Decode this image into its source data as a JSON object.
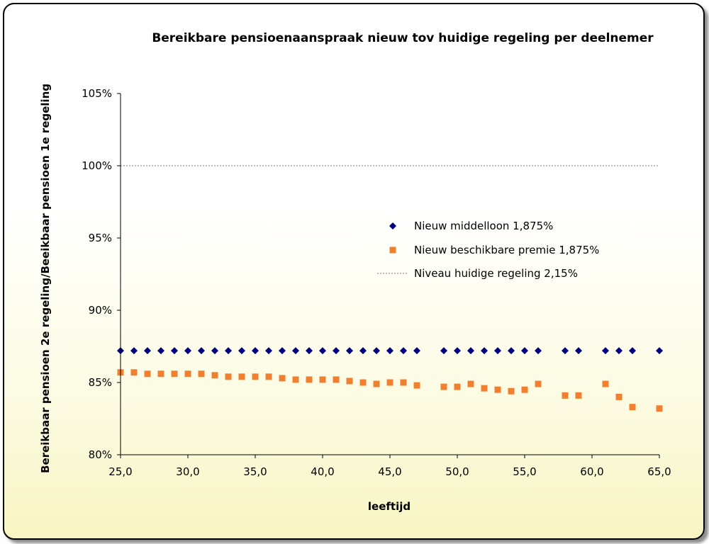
{
  "chart_data": {
    "type": "scatter",
    "title": "Bereikbare pensioenaanspraak nieuw tov huidige regeling per deelnemer",
    "xlabel": "leeftijd",
    "ylabel": "Bereikbaar pensioen 2e regeling/Beeikbaar pensioen 1e regeling",
    "xlim": [
      25,
      65
    ],
    "ylim": [
      0.8,
      1.05
    ],
    "x_ticks": [
      25,
      30,
      35,
      40,
      45,
      50,
      55,
      60,
      65
    ],
    "x_tick_labels": [
      "25,0",
      "30,0",
      "35,0",
      "40,0",
      "45,0",
      "50,0",
      "55,0",
      "60,0",
      "65,0"
    ],
    "y_ticks": [
      0.8,
      0.85,
      0.9,
      0.95,
      1.0,
      1.05
    ],
    "y_tick_labels": [
      "80%",
      "85%",
      "90%",
      "95%",
      "100%",
      "105%"
    ],
    "grid": false,
    "legend_position": "center-right",
    "series": [
      {
        "name": "Nieuw middelloon 1,875%",
        "marker": "diamond",
        "color": "#000080",
        "x": [
          25,
          26,
          27,
          28,
          29,
          30,
          31,
          32,
          33,
          34,
          35,
          36,
          37,
          38,
          39,
          40,
          41,
          42,
          43,
          44,
          45,
          46,
          47,
          49,
          50,
          51,
          52,
          53,
          54,
          55,
          56,
          58,
          59,
          61,
          62,
          63,
          65
        ],
        "y": [
          0.872,
          0.872,
          0.872,
          0.872,
          0.872,
          0.872,
          0.872,
          0.872,
          0.872,
          0.872,
          0.872,
          0.872,
          0.872,
          0.872,
          0.872,
          0.872,
          0.872,
          0.872,
          0.872,
          0.872,
          0.872,
          0.872,
          0.872,
          0.872,
          0.872,
          0.872,
          0.872,
          0.872,
          0.872,
          0.872,
          0.872,
          0.872,
          0.872,
          0.872,
          0.872,
          0.872,
          0.872
        ]
      },
      {
        "name": "Nieuw beschikbare premie 1,875%",
        "marker": "square",
        "color": "#f08030",
        "x": [
          25,
          26,
          27,
          28,
          29,
          30,
          31,
          32,
          33,
          34,
          35,
          36,
          37,
          38,
          39,
          40,
          41,
          42,
          43,
          44,
          45,
          46,
          47,
          49,
          50,
          51,
          52,
          53,
          54,
          55,
          56,
          58,
          59,
          61,
          62,
          63,
          65
        ],
        "y": [
          0.857,
          0.857,
          0.856,
          0.856,
          0.856,
          0.856,
          0.856,
          0.855,
          0.854,
          0.854,
          0.854,
          0.854,
          0.853,
          0.852,
          0.852,
          0.852,
          0.852,
          0.851,
          0.85,
          0.849,
          0.85,
          0.85,
          0.848,
          0.847,
          0.847,
          0.849,
          0.846,
          0.845,
          0.844,
          0.845,
          0.849,
          0.841,
          0.841,
          0.849,
          0.84,
          0.833,
          0.832
        ]
      },
      {
        "name": "Niveau huidige regeling 2,15%",
        "marker": "dotted-line",
        "color": "#a6a6a6",
        "x": [
          25,
          65
        ],
        "y": [
          1.0,
          1.0
        ]
      }
    ]
  }
}
